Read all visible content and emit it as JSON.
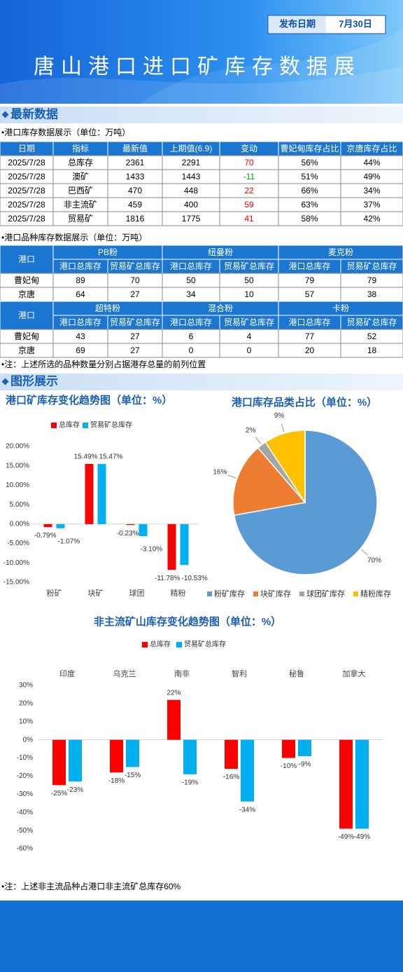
{
  "header": {
    "title": "唐山港口进口矿库存数据展",
    "date_label": "发布日期",
    "date": "7月30日"
  },
  "sections": [
    "最新数据",
    "图形展示"
  ],
  "table1": {
    "caption": "•港口库存数据展示（单位：万吨）",
    "columns": [
      "日期",
      "指标",
      "最新值",
      "上期值(6.9)",
      "变动",
      "曹妃甸库存占比",
      "京唐库存占比"
    ],
    "rows": [
      [
        "2025/7/28",
        "总库存",
        2361,
        2291,
        70,
        "56%",
        "44%"
      ],
      [
        "2025/7/28",
        "澳矿",
        1433,
        1443,
        -11,
        "51%",
        "49%"
      ],
      [
        "2025/7/28",
        "巴西矿",
        470,
        448,
        22,
        "66%",
        "34%"
      ],
      [
        "2025/7/28",
        "非主流矿",
        459,
        400,
        59,
        "63%",
        "37%"
      ],
      [
        "2025/7/28",
        "贸易矿",
        1816,
        1775,
        41,
        "58%",
        "42%"
      ]
    ]
  },
  "table2": {
    "caption": "•港口品种库存数据展示（单位：万吨）",
    "port_header": "港口",
    "subheaders": [
      "港口总库存",
      "贸易矿总库存"
    ],
    "blocks": [
      {
        "groups": [
          "PB粉",
          "纽曼粉",
          "麦克粉"
        ],
        "rows": [
          [
            "曹妃甸",
            89,
            70,
            50,
            50,
            79,
            79
          ],
          [
            "京唐",
            64,
            27,
            34,
            10,
            57,
            38
          ]
        ]
      },
      {
        "groups": [
          "超特粉",
          "混合粉",
          "卡粉"
        ],
        "rows": [
          [
            "曹妃甸",
            43,
            27,
            6,
            4,
            77,
            52
          ],
          [
            "京唐",
            69,
            27,
            0,
            0,
            20,
            18
          ]
        ]
      }
    ]
  },
  "notes": [
    "•注：上述所选的品种数量分别占据港存总量的前列位置",
    "•注：上述非主流品种占港口非主流矿总库存60%"
  ],
  "chart_data": [
    {
      "type": "bar",
      "title": "港口矿库存变化趋势图（单位：%）",
      "categories": [
        "粉矿",
        "块矿",
        "球团",
        "精粉"
      ],
      "series": [
        {
          "name": "总库存",
          "color": "#ff0000",
          "values": [
            -0.79,
            15.49,
            -0.23,
            -11.78
          ],
          "value_labels": [
            "-0.79%",
            "15.49%",
            "-0.23%",
            "-11.78%"
          ]
        },
        {
          "name": "贸易矿总库存",
          "color": "#00b0f0",
          "values": [
            -1.07,
            15.47,
            -3.1,
            -10.53
          ],
          "value_labels": [
            "-1.07%",
            "15.47%",
            "-3.10%",
            "-10.53%"
          ]
        }
      ],
      "ylim": [
        -15,
        20
      ],
      "yticks": [
        {
          "value": 20,
          "label": "20.00%"
        },
        {
          "value": 15,
          "label": "15.00%"
        },
        {
          "value": 10,
          "label": "10.00%"
        },
        {
          "value": 5,
          "label": "5.00%"
        },
        {
          "value": 0,
          "label": "0.00%"
        },
        {
          "value": -5,
          "label": "-5.00%"
        },
        {
          "value": -10,
          "label": "-10.00%"
        },
        {
          "value": -15,
          "label": "-15.00%"
        }
      ],
      "grid": false
    },
    {
      "type": "pie",
      "title": "港口库存品类占比（单位：%）",
      "categories": [
        "粉矿库存",
        "块矿库存",
        "球团矿库存",
        "精粉库存"
      ],
      "values": [
        70,
        16,
        2,
        9
      ],
      "value_labels": [
        "70%",
        "16%",
        "2%",
        "9%"
      ],
      "colors": [
        "#5b9bd5",
        "#ed7d31",
        "#a5a5a5",
        "#ffc000"
      ]
    },
    {
      "type": "bar",
      "title": "非主流矿山库存变化趋势图（单位：%）",
      "categories": [
        "印度",
        "乌克兰",
        "南非",
        "智利",
        "秘鲁",
        "加拿大"
      ],
      "series": [
        {
          "name": "总库存",
          "color": "#ff0000",
          "values": [
            -25,
            -18,
            22,
            -16,
            -10,
            -49
          ],
          "value_labels": [
            "-25%",
            "-18%",
            "22%",
            "-16%",
            "-10%",
            "-49%"
          ]
        },
        {
          "name": "贸易矿总库存",
          "color": "#00b0f0",
          "values": [
            -23,
            -15,
            -19,
            -34,
            -9,
            -49
          ],
          "value_labels": [
            "-23%",
            "-15%",
            "-19%",
            "-34%",
            "-9%",
            "-49%"
          ]
        }
      ],
      "ylim": [
        -60,
        30
      ],
      "yticks": [
        {
          "value": 30,
          "label": "30%"
        },
        {
          "value": 20,
          "label": "20%"
        },
        {
          "value": 10,
          "label": "10%"
        },
        {
          "value": 0,
          "label": "0%"
        },
        {
          "value": -10,
          "label": "-10%"
        },
        {
          "value": -20,
          "label": "-20%"
        },
        {
          "value": -30,
          "label": "-30%"
        },
        {
          "value": -40,
          "label": "-40%"
        },
        {
          "value": -50,
          "label": "-50%"
        },
        {
          "value": -60,
          "label": "-60%"
        }
      ],
      "grid": false
    }
  ]
}
